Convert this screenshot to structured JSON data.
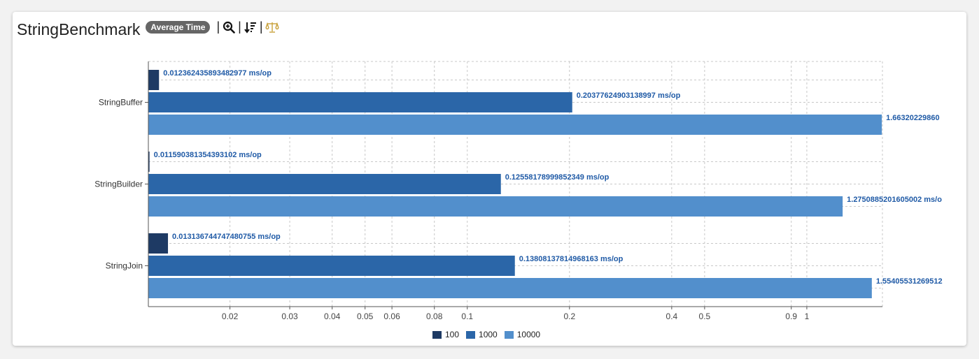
{
  "header": {
    "title": "StringBenchmark",
    "mode_badge": "Average Time",
    "separator": "|",
    "tools": [
      {
        "icon": "zoom-in-icon"
      },
      {
        "icon": "sort-icon"
      },
      {
        "icon": "balance-scale-icon"
      }
    ]
  },
  "colors": {
    "s100": "#1e3a64",
    "s1000": "#2b66a8",
    "s10000": "#528fcc",
    "label": "#1f5aa6",
    "scale_icon": "#c8a13a"
  },
  "chart_data": {
    "type": "bar",
    "orientation": "horizontal",
    "x_scale": "log",
    "xlim": [
      0.0115,
      1.67
    ],
    "x_ticks": [
      0.02,
      0.03,
      0.04,
      0.05,
      0.06,
      0.08,
      0.1,
      0.2,
      0.4,
      0.5,
      0.9,
      1
    ],
    "x_tick_labels": [
      "0.02",
      "0.03",
      "0.04",
      "0.05",
      "0.06",
      "0.08",
      "0.1",
      "0.2",
      "0.4",
      "0.5",
      "0.9",
      "1"
    ],
    "grid": true,
    "legend": "bottom",
    "categories": [
      "StringBuffer",
      "StringBuilder",
      "StringJoin"
    ],
    "series": [
      {
        "name": "100",
        "values": [
          0.012362435893482977,
          0.011590381354393102,
          0.013136744747480755
        ],
        "labels": [
          "0.012362435893482977 ms/op",
          "0.011590381354393102 ms/op",
          "0.013136744747480755 ms/op"
        ]
      },
      {
        "name": "1000",
        "values": [
          0.20377624903138997,
          0.12558178999852349,
          0.13808137814968163
        ],
        "labels": [
          "0.20377624903138997 ms/op",
          "0.12558178999852349 ms/op",
          "0.13808137814968163 ms/op"
        ]
      },
      {
        "name": "10000",
        "values": [
          1.6632022986,
          1.2750885201605002,
          1.55405531269512
        ],
        "labels": [
          "1.66320229860",
          "1.2750885201605002 ms/o",
          "1.55405531269512"
        ]
      }
    ]
  }
}
